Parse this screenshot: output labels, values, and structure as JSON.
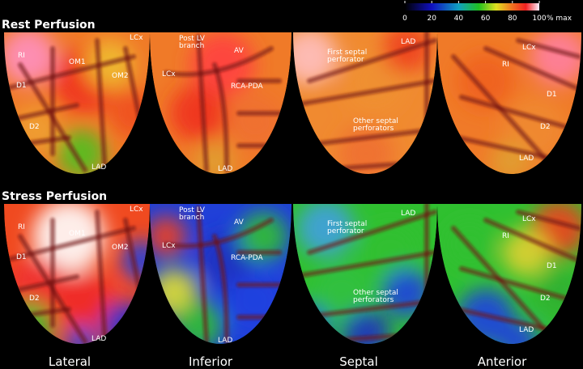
{
  "colorbar": {
    "lim": [
      0,
      100
    ],
    "ticks": [
      0,
      20,
      40,
      60,
      80,
      100
    ],
    "unit": "% max"
  },
  "rows": [
    {
      "title": "Rest Perfusion",
      "panels": [
        {
          "labels": [
            [
              "LCx"
            ],
            [
              "RI"
            ],
            [
              "OM1"
            ],
            [
              "OM2"
            ],
            [
              "D1"
            ],
            [
              "D2"
            ],
            [
              "LAD"
            ]
          ]
        },
        {
          "labels": [
            [
              "Post LV",
              "branch"
            ],
            [
              "AV"
            ],
            [
              "LCx"
            ],
            [
              "RCA-PDA"
            ],
            [
              "LAD"
            ]
          ]
        },
        {
          "labels": [
            [
              "LAD"
            ],
            [
              "First septal",
              "perforator"
            ],
            [
              "Other septal",
              "perforators"
            ]
          ]
        },
        {
          "labels": [
            [
              "LCx"
            ],
            [
              "RI"
            ],
            [
              "D1"
            ],
            [
              "D2"
            ],
            [
              "LAD"
            ]
          ]
        }
      ]
    },
    {
      "title": "Stress Perfusion",
      "panels": [
        {
          "labels": [
            [
              "LCx"
            ],
            [
              "RI"
            ],
            [
              "OM1"
            ],
            [
              "OM2"
            ],
            [
              "D1"
            ],
            [
              "D2"
            ],
            [
              "LAD"
            ]
          ]
        },
        {
          "labels": [
            [
              "Post LV",
              "branch"
            ],
            [
              "AV"
            ],
            [
              "LCx"
            ],
            [
              "RCA-PDA"
            ],
            [
              "LAD"
            ]
          ]
        },
        {
          "labels": [
            [
              "LAD"
            ],
            [
              "First septal",
              "perforator"
            ],
            [
              "Other septal",
              "perforators"
            ]
          ]
        },
        {
          "labels": [
            [
              "LCx"
            ],
            [
              "RI"
            ],
            [
              "D1"
            ],
            [
              "D2"
            ],
            [
              "LAD"
            ]
          ]
        }
      ]
    }
  ],
  "views": [
    "Lateral",
    "Inferior",
    "Septal",
    "Anterior"
  ]
}
